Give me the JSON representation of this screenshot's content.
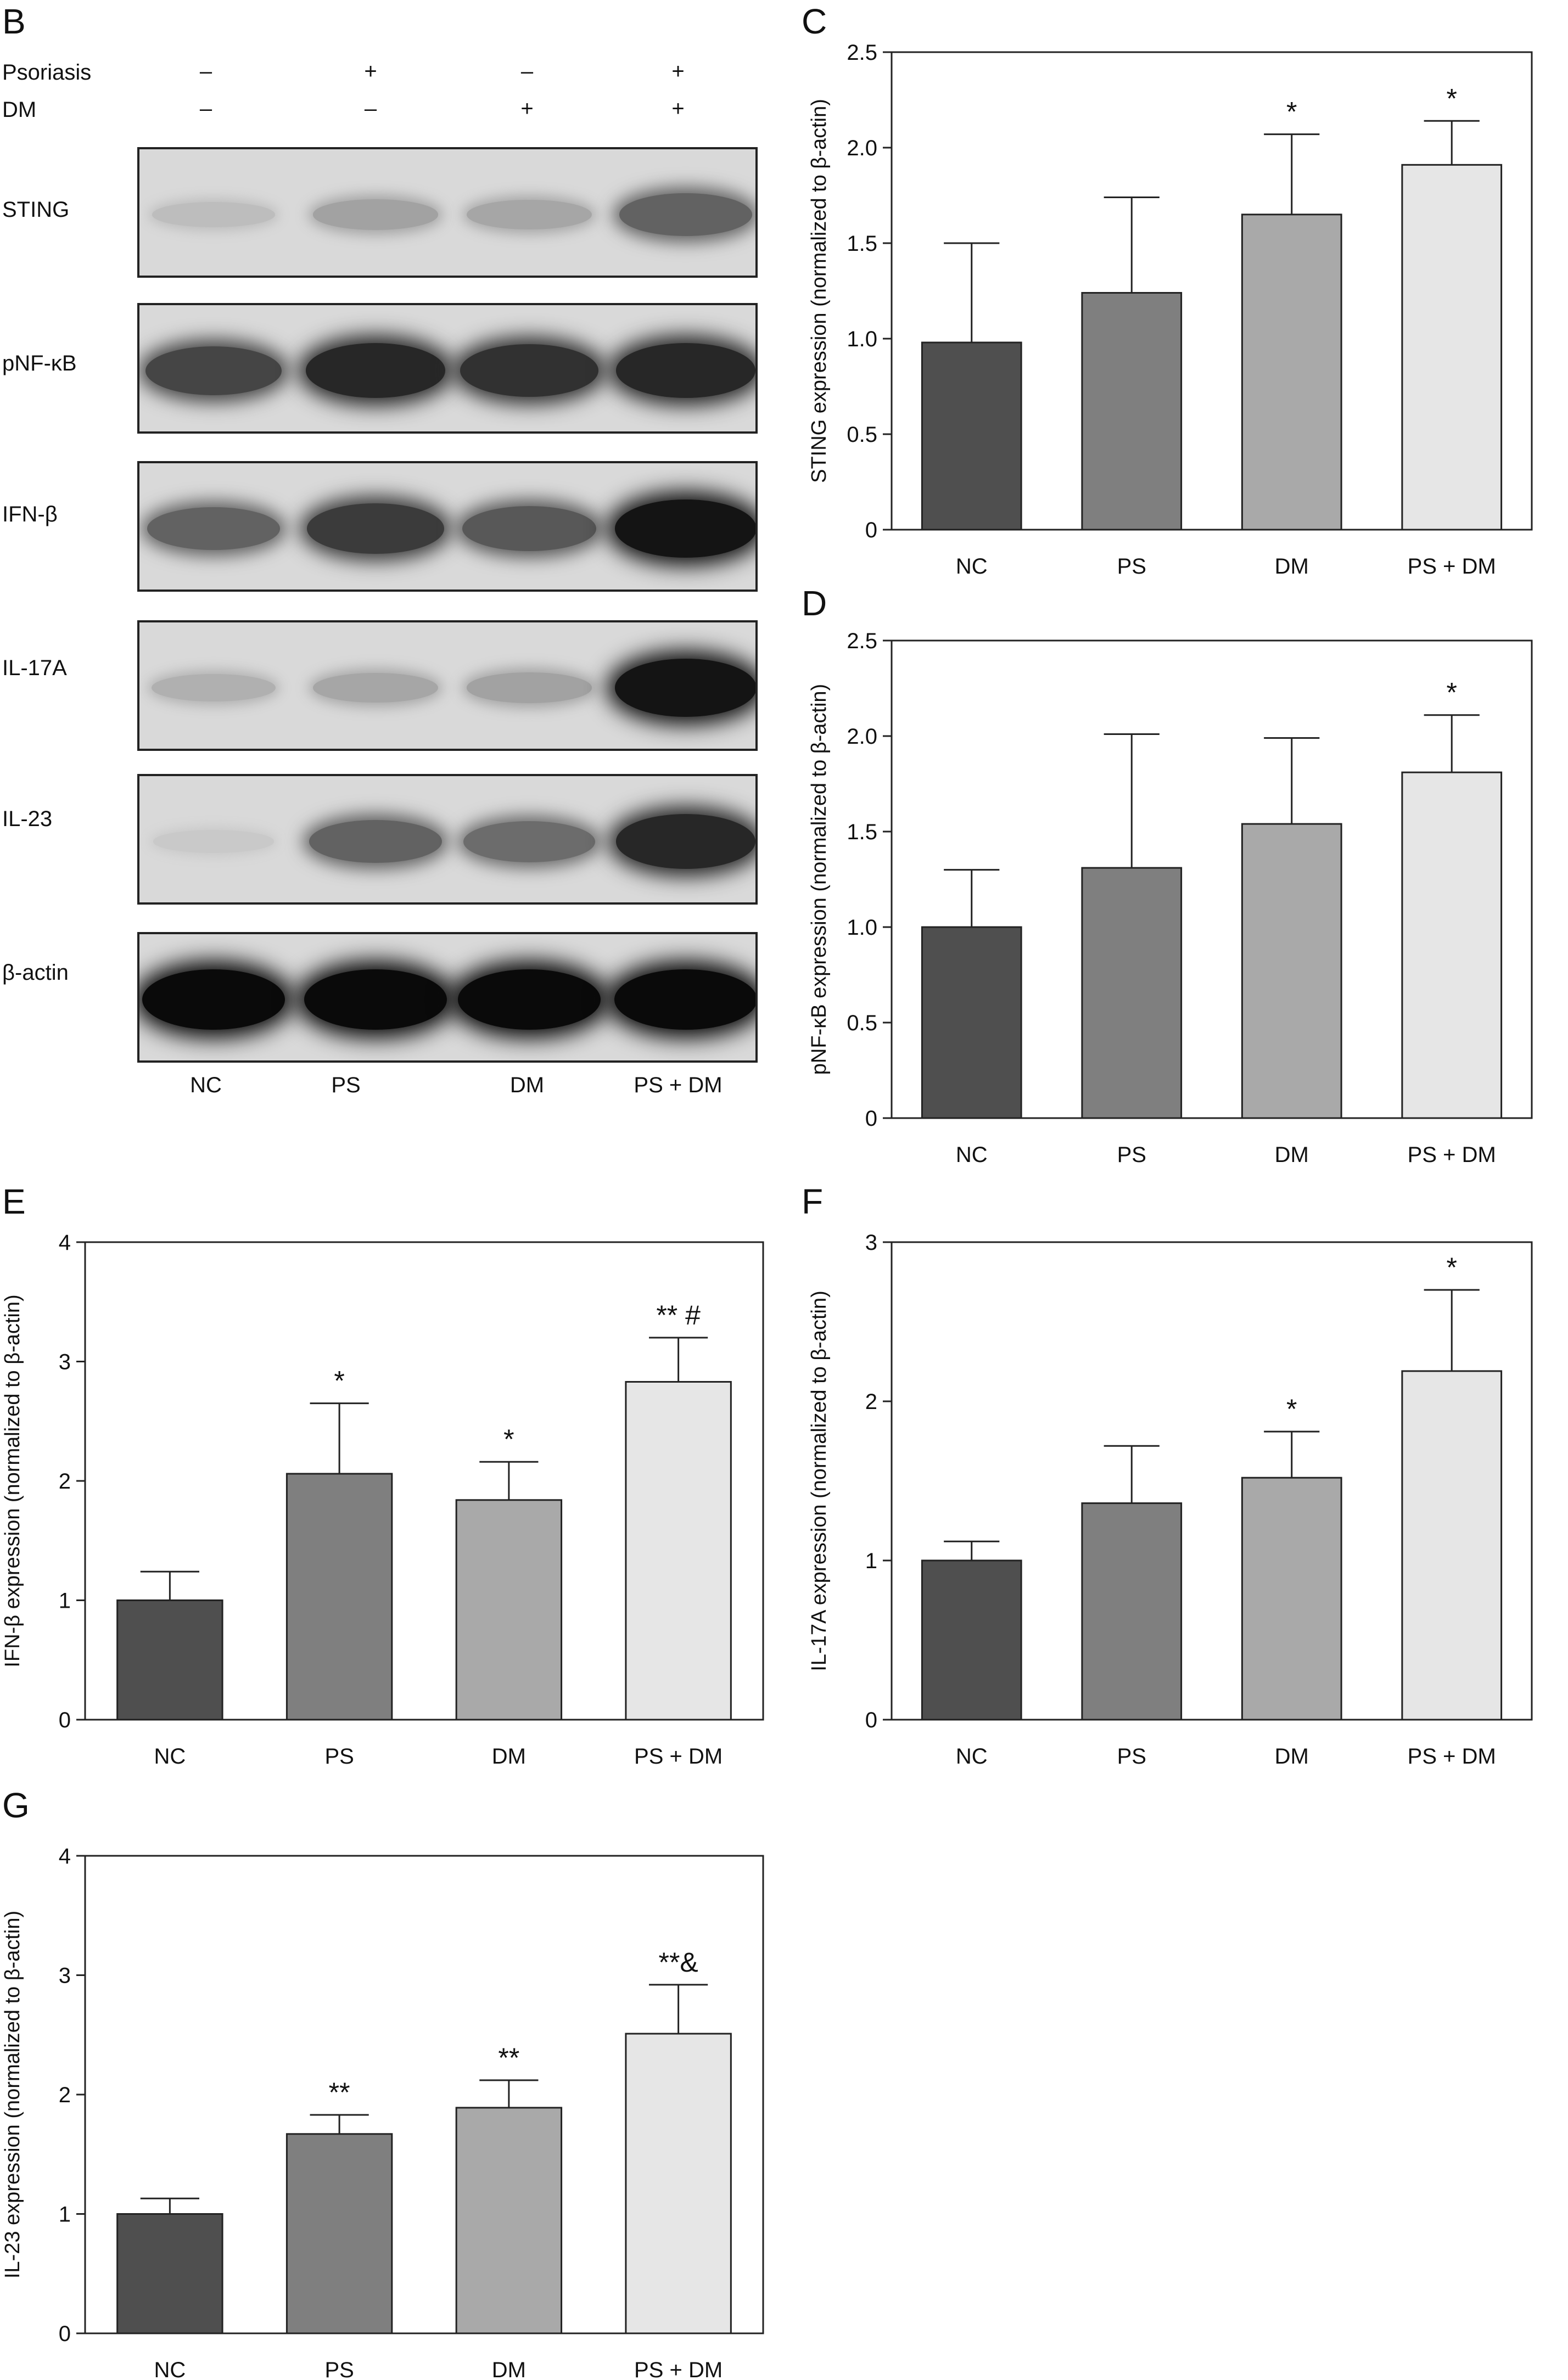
{
  "western_blot": {
    "panel_letter": "B",
    "row_labels": {
      "psoriasis": "Psoriasis",
      "dm": "DM"
    },
    "psoriasis_signs": [
      "–",
      "+",
      "–",
      "+"
    ],
    "dm_signs": [
      "–",
      "–",
      "+",
      "+"
    ],
    "blot_names": [
      "STING",
      "pNF-κB",
      "IFN-β",
      "IL-17A",
      "IL-23",
      "β-actin"
    ],
    "lanes": [
      "NC",
      "PS",
      "DM",
      "PS + DM"
    ],
    "band_intensity": [
      [
        0.08,
        0.22,
        0.2,
        0.55
      ],
      [
        0.7,
        0.85,
        0.8,
        0.85
      ],
      [
        0.55,
        0.75,
        0.6,
        0.95
      ],
      [
        0.15,
        0.2,
        0.22,
        0.95
      ],
      [
        0.02,
        0.55,
        0.5,
        0.85
      ],
      [
        1.0,
        1.0,
        1.0,
        1.0
      ]
    ]
  },
  "chart_data": [
    {
      "panel_letter": "C",
      "type": "bar",
      "categories": [
        "NC",
        "PS",
        "DM",
        "PS + DM"
      ],
      "values": [
        0.98,
        1.24,
        1.65,
        1.91
      ],
      "errors": [
        0.52,
        0.5,
        0.42,
        0.23
      ],
      "annotations": [
        "",
        "",
        "*",
        "*"
      ],
      "ylabel": "STING expression (normalized to β-actin)",
      "ylim": [
        0,
        2.5
      ],
      "yticks": [
        "0",
        "0.5",
        "1.0",
        "1.5",
        "2.0",
        "2.5"
      ],
      "colors": [
        "#4f4f4f",
        "#7f7f7f",
        "#a9a9a9",
        "#e6e6e6"
      ]
    },
    {
      "panel_letter": "D",
      "type": "bar",
      "categories": [
        "NC",
        "PS",
        "DM",
        "PS + DM"
      ],
      "values": [
        1.0,
        1.31,
        1.54,
        1.81
      ],
      "errors": [
        0.3,
        0.7,
        0.45,
        0.3
      ],
      "annotations": [
        "",
        "",
        "",
        "*"
      ],
      "ylabel": "pNF-κB expression (normalized to β-actin)",
      "ylim": [
        0,
        2.5
      ],
      "yticks": [
        "0",
        "0.5",
        "1.0",
        "1.5",
        "2.0",
        "2.5"
      ],
      "colors": [
        "#4f4f4f",
        "#7f7f7f",
        "#a9a9a9",
        "#e6e6e6"
      ]
    },
    {
      "panel_letter": "E",
      "type": "bar",
      "categories": [
        "NC",
        "PS",
        "DM",
        "PS + DM"
      ],
      "values": [
        1.0,
        2.06,
        1.84,
        2.83
      ],
      "errors": [
        0.24,
        0.59,
        0.32,
        0.37
      ],
      "annotations": [
        "",
        "*",
        "*",
        "** #"
      ],
      "ylabel": "IFN-β expression (normalized to β-actin)",
      "ylim": [
        0,
        4
      ],
      "yticks": [
        "0",
        "1",
        "2",
        "3",
        "4"
      ],
      "colors": [
        "#4f4f4f",
        "#7f7f7f",
        "#a9a9a9",
        "#e6e6e6"
      ]
    },
    {
      "panel_letter": "F",
      "type": "bar",
      "categories": [
        "NC",
        "PS",
        "DM",
        "PS + DM"
      ],
      "values": [
        1.0,
        1.36,
        1.52,
        2.19
      ],
      "errors": [
        0.12,
        0.36,
        0.29,
        0.51
      ],
      "annotations": [
        "",
        "",
        "*",
        "*"
      ],
      "ylabel": "IL-17A expression (normalized to β-actin)",
      "ylim": [
        0,
        3
      ],
      "yticks": [
        "0",
        "1",
        "2",
        "3"
      ],
      "colors": [
        "#4f4f4f",
        "#7f7f7f",
        "#a9a9a9",
        "#e6e6e6"
      ]
    },
    {
      "panel_letter": "G",
      "type": "bar",
      "categories": [
        "NC",
        "PS",
        "DM",
        "PS + DM"
      ],
      "values": [
        1.0,
        1.67,
        1.89,
        2.51
      ],
      "errors": [
        0.13,
        0.16,
        0.23,
        0.41
      ],
      "annotations": [
        "",
        "**",
        "**",
        "**&"
      ],
      "ylabel": "IL-23 expression (normalized to β-actin)",
      "ylim": [
        0,
        4
      ],
      "yticks": [
        "0",
        "1",
        "2",
        "3",
        "4"
      ],
      "colors": [
        "#4f4f4f",
        "#7f7f7f",
        "#a9a9a9",
        "#e6e6e6"
      ]
    }
  ]
}
